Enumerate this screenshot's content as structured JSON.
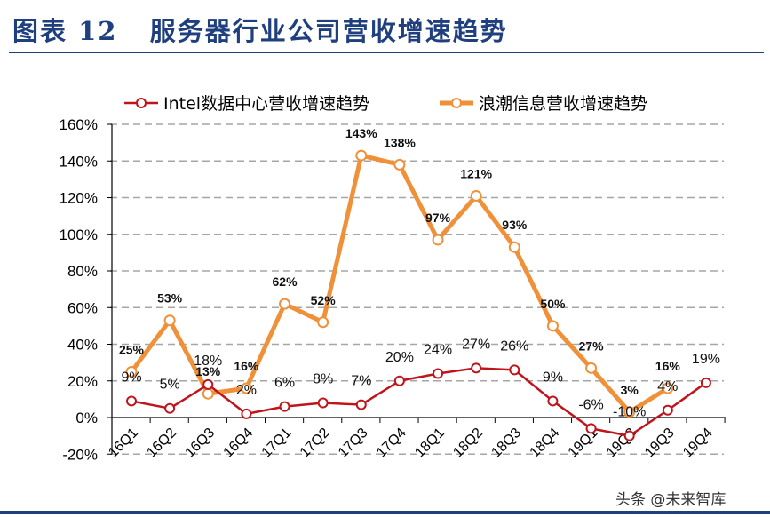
{
  "title": "图表 12   服务器行业公司营收增速趋势",
  "watermark": "头条 @未来智库",
  "chart_data": {
    "type": "line",
    "title": "服务器行业公司营收增速趋势",
    "categories": [
      "16Q1",
      "16Q2",
      "16Q3",
      "16Q4",
      "17Q1",
      "17Q2",
      "17Q3",
      "17Q4",
      "18Q1",
      "18Q2",
      "18Q3",
      "18Q4",
      "19Q1",
      "19Q2",
      "19Q3",
      "19Q4"
    ],
    "ylim": [
      -20,
      160
    ],
    "yticks": [
      "-20%",
      "0%",
      "20%",
      "40%",
      "60%",
      "80%",
      "100%",
      "120%",
      "140%",
      "160%"
    ],
    "legend_position": "top",
    "series": [
      {
        "name": "Intel数据中心营收增速趋势",
        "color": "#c0141c",
        "values": [
          9,
          5,
          18,
          2,
          6,
          8,
          7,
          20,
          24,
          27,
          26,
          9,
          -6,
          -10,
          4,
          19
        ]
      },
      {
        "name": "浪潮信息营收增速趋势",
        "color": "#f0913a",
        "values": [
          25,
          53,
          13,
          16,
          62,
          52,
          143,
          138,
          97,
          121,
          93,
          50,
          27,
          3,
          16,
          null
        ]
      }
    ]
  }
}
